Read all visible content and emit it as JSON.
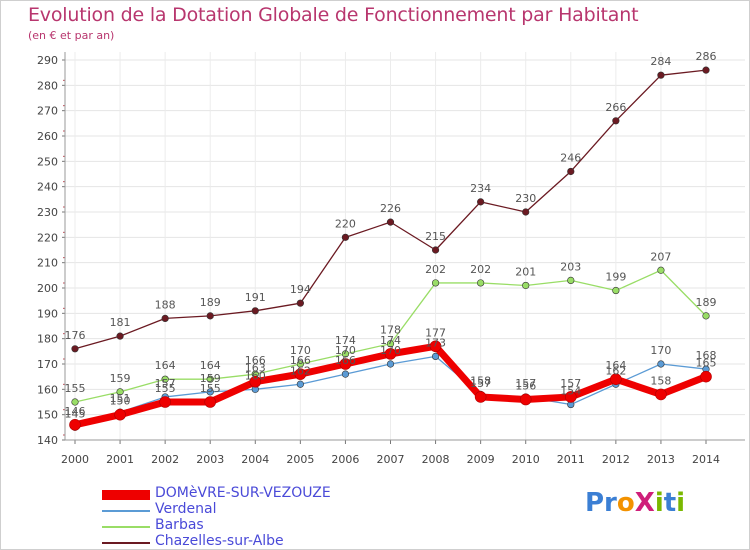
{
  "chart_data": {
    "type": "line",
    "title": "Evolution de la Dotation Globale de Fonctionnement par Habitant",
    "subtitle": "(en € et par an)",
    "xlabel": "",
    "ylabel": "",
    "ylim": [
      140,
      290
    ],
    "ytick_step": 10,
    "categories": [
      "2000",
      "2001",
      "2002",
      "2003",
      "2004",
      "2005",
      "2006",
      "2007",
      "2008",
      "2009",
      "2010",
      "2011",
      "2012",
      "2013",
      "2014"
    ],
    "series": [
      {
        "name": "DOMèVRE-SUR-VEZOUZE",
        "color": "#ee0000",
        "bold": true,
        "values": [
          146,
          150,
          155,
          155,
          163,
          166,
          170,
          174,
          177,
          157,
          156,
          157,
          164,
          158,
          165
        ]
      },
      {
        "name": "Verdenal",
        "color": "#5b9bd5",
        "values": [
          145,
          151,
          157,
          159,
          160,
          162,
          166,
          170,
          173,
          158,
          157,
          154,
          162,
          170,
          168
        ]
      },
      {
        "name": "Barbas",
        "color": "#99dd66",
        "values": [
          155,
          159,
          164,
          164,
          166,
          170,
          174,
          178,
          202,
          202,
          201,
          203,
          199,
          207,
          189
        ]
      },
      {
        "name": "Chazelles-sur-Albe",
        "color": "#6b1a22",
        "values": [
          176,
          181,
          188,
          189,
          191,
          194,
          220,
          226,
          215,
          234,
          230,
          246,
          266,
          284,
          286
        ]
      }
    ]
  },
  "logo": {
    "text": "ProXiti"
  }
}
